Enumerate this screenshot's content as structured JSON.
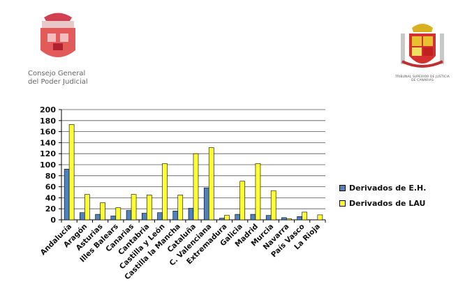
{
  "logos": {
    "cgpj": {
      "icon": "coat-of-arms-icon",
      "caption_line1": "Consejo General",
      "caption_line2": "del Poder Judicial"
    },
    "tsj": {
      "icon": "coat-of-arms-icon",
      "caption_line1": "TRIBUNAL SUPERIOR DE JUSTICIA",
      "caption_line2": "DE CANARIAS"
    }
  },
  "chart_data": {
    "type": "bar",
    "title": "",
    "xlabel": "",
    "ylabel": "",
    "ylim": [
      0,
      200
    ],
    "yticks": [
      0,
      20,
      40,
      60,
      80,
      100,
      120,
      140,
      160,
      180,
      200
    ],
    "grid": true,
    "legend_position": "right",
    "categories": [
      "Andalucía",
      "Aragón",
      "Asturias",
      "Illes Balears",
      "Canarias",
      "Cantabria",
      "Castilla y León",
      "Castilla la Mancha",
      "Cataluña",
      "C. Valenciana",
      "Extremadura",
      "Galicia",
      "Madrid",
      "Murcia",
      "Navarra",
      "País Vasco",
      "La Rioja"
    ],
    "series": [
      {
        "name": "Derivados de E.H.",
        "color": "#4F81BD",
        "values": [
          92,
          13,
          10,
          7,
          17,
          12,
          13,
          16,
          21,
          58,
          3,
          10,
          10,
          8,
          4,
          6,
          0
        ]
      },
      {
        "name": "Derivados de LAU",
        "color": "#FFFF33",
        "values": [
          173,
          46,
          31,
          22,
          46,
          45,
          102,
          45,
          120,
          131,
          8,
          70,
          102,
          53,
          2,
          14,
          9
        ]
      }
    ]
  }
}
